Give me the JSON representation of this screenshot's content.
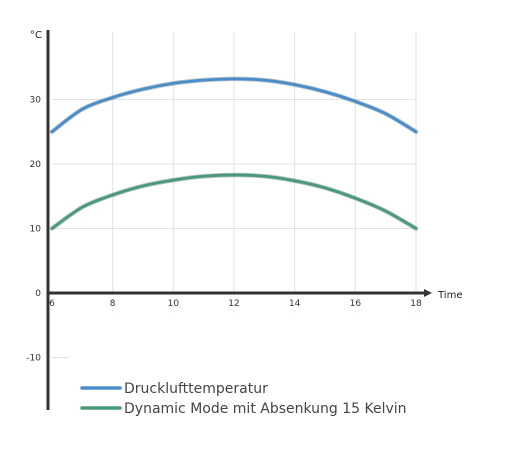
{
  "chart_data": {
    "type": "line",
    "title": "",
    "xlabel": "Time",
    "ylabel": "°C",
    "xlim": [
      6,
      18
    ],
    "ylim": [
      -10,
      40
    ],
    "x_ticks": [
      6,
      8,
      10,
      12,
      14,
      16,
      18
    ],
    "y_ticks": [
      -10,
      0,
      10,
      20,
      30
    ],
    "grid": true,
    "legend_position": "bottom-left",
    "series": [
      {
        "name": "Drucklufttemperatur",
        "color": "#4a8ec9",
        "x": [
          6,
          7,
          8,
          9,
          10,
          11,
          12,
          13,
          14,
          15,
          16,
          17,
          18
        ],
        "y": [
          25,
          28.5,
          30.3,
          31.6,
          32.5,
          33.0,
          33.2,
          33.0,
          32.3,
          31.2,
          29.7,
          27.8,
          25
        ]
      },
      {
        "name": "Dynamic Mode mit Absenkung 15 Kelvin",
        "color": "#4a9a77",
        "x": [
          6,
          7,
          8,
          9,
          10,
          11,
          12,
          13,
          14,
          15,
          16,
          17,
          18
        ],
        "y": [
          10,
          13.3,
          15.2,
          16.6,
          17.5,
          18.1,
          18.3,
          18.1,
          17.4,
          16.3,
          14.7,
          12.7,
          10
        ]
      }
    ]
  }
}
